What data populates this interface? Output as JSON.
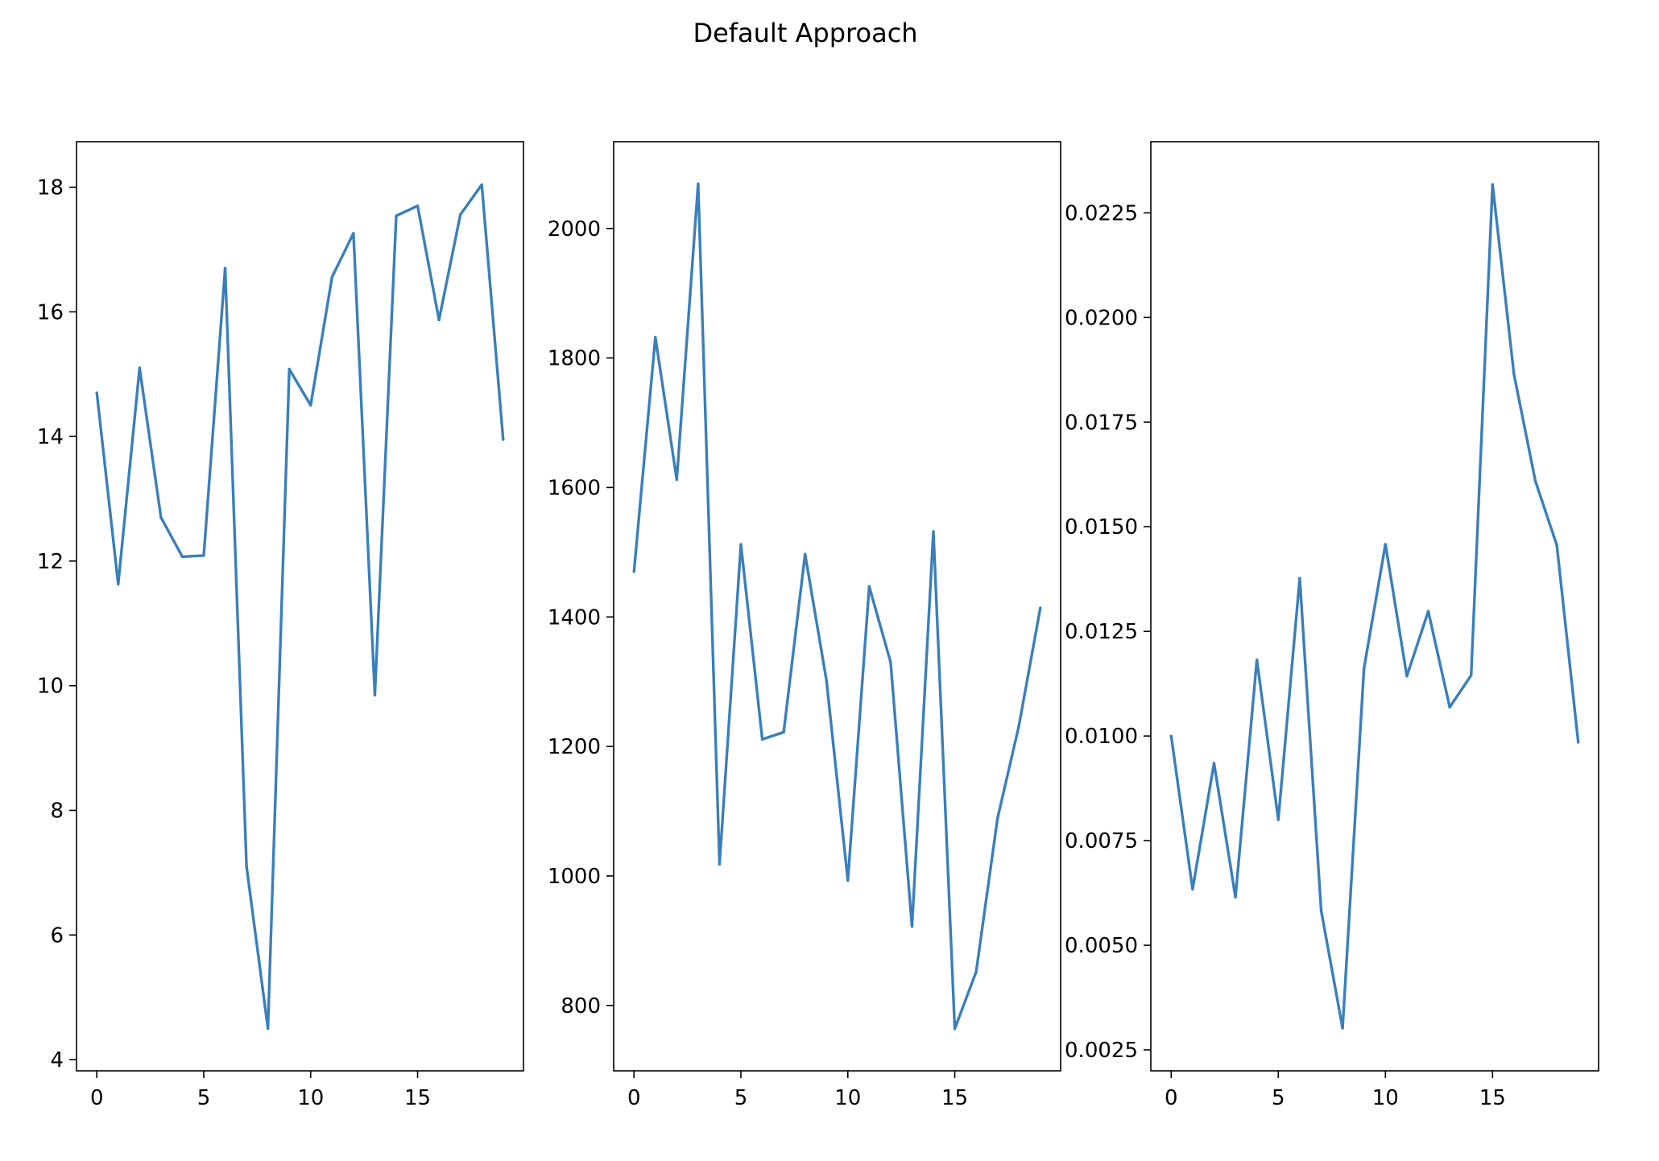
{
  "chart_data": {
    "suptitle": "Default Approach",
    "subplots": [
      {
        "type": "line",
        "title": "",
        "xlabel": "",
        "ylabel": "",
        "x": [
          0,
          1,
          2,
          3,
          4,
          5,
          6,
          7,
          8,
          9,
          10,
          11,
          12,
          13,
          14,
          15,
          16,
          17,
          18,
          19
        ],
        "values": [
          14.7,
          11.63,
          15.1,
          12.7,
          12.07,
          12.09,
          16.7,
          7.1,
          4.5,
          15.08,
          14.5,
          16.56,
          17.26,
          9.85,
          17.54,
          17.7,
          15.87,
          17.56,
          18.04,
          13.95
        ],
        "xlim": [
          -0.95,
          19.95
        ],
        "ylim": [
          3.82,
          18.73
        ],
        "xticks": [
          0,
          5,
          10,
          15
        ],
        "yticks": [
          4,
          6,
          8,
          10,
          12,
          14,
          16,
          18
        ],
        "ytick_labels": [
          "4",
          "6",
          "8",
          "10",
          "12",
          "14",
          "16",
          "18"
        ]
      },
      {
        "type": "line",
        "title": "",
        "xlabel": "",
        "ylabel": "",
        "x": [
          0,
          1,
          2,
          3,
          4,
          5,
          6,
          7,
          8,
          9,
          10,
          11,
          12,
          13,
          14,
          15,
          16,
          17,
          18,
          19
        ],
        "values": [
          1470,
          1832,
          1612,
          2069,
          1018,
          1512,
          1211,
          1222,
          1497,
          1302,
          993,
          1447,
          1330,
          922,
          1532,
          764,
          852,
          1089,
          1232,
          1414
        ],
        "xlim": [
          -0.95,
          19.95
        ],
        "ylim": [
          699,
          2134
        ],
        "xticks": [
          0,
          5,
          10,
          15
        ],
        "yticks": [
          800,
          1000,
          1200,
          1400,
          1600,
          1800,
          2000
        ],
        "ytick_labels": [
          "800",
          "1000",
          "1200",
          "1400",
          "1600",
          "1800",
          "2000"
        ]
      },
      {
        "type": "line",
        "title": "",
        "xlabel": "",
        "ylabel": "",
        "x": [
          0,
          1,
          2,
          3,
          4,
          5,
          6,
          7,
          8,
          9,
          10,
          11,
          12,
          13,
          14,
          15,
          16,
          17,
          18,
          19
        ],
        "values": [
          0.01,
          0.00634,
          0.00935,
          0.00615,
          0.01182,
          0.008,
          0.01377,
          0.00583,
          0.00302,
          0.01162,
          0.01458,
          0.01143,
          0.01298,
          0.01069,
          0.01145,
          0.02318,
          0.01864,
          0.01609,
          0.01456,
          0.00985
        ],
        "xlim": [
          -0.95,
          19.95
        ],
        "ylim": [
          0.002,
          0.0242
        ],
        "xticks": [
          0,
          5,
          10,
          15
        ],
        "yticks": [
          0.0025,
          0.005,
          0.0075,
          0.01,
          0.0125,
          0.015,
          0.0175,
          0.02,
          0.0225
        ],
        "ytick_labels": [
          "0.0025",
          "0.0050",
          "0.0075",
          "0.0100",
          "0.0125",
          "0.0150",
          "0.0175",
          "0.0200",
          "0.0225"
        ]
      }
    ],
    "line_color": "#3a7fba",
    "grid": false,
    "legend": "none"
  }
}
